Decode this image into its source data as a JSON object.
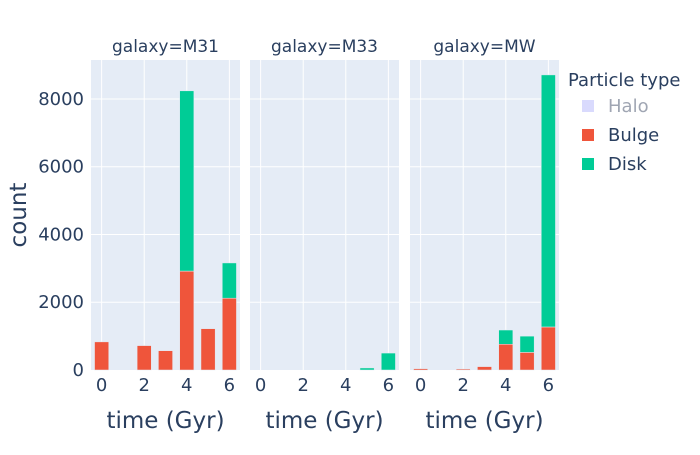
{
  "chart_data": {
    "type": "bar",
    "barmode": "stack",
    "x_label": "time (Gyr)",
    "y_label": "count",
    "x_ticks": [
      0,
      2,
      4,
      6
    ],
    "y_ticks": [
      0,
      2000,
      4000,
      6000,
      8000
    ],
    "y_range": [
      0,
      9150
    ],
    "x_range": [
      -0.5,
      6.5
    ],
    "grid": true,
    "legend": {
      "title": "Particle type",
      "position": "right",
      "entries": [
        {
          "name": "Halo",
          "color": "#b3b5fc",
          "hidden": true
        },
        {
          "name": "Bulge",
          "color": "#ef553b",
          "hidden": false
        },
        {
          "name": "Disk",
          "color": "#00cc96",
          "hidden": false
        }
      ]
    },
    "panels": [
      {
        "title": "galaxy=M31",
        "x": [
          0,
          1,
          2,
          3,
          4,
          5,
          6
        ],
        "series": [
          {
            "name": "Bulge",
            "values": [
              830,
              0,
              720,
              570,
              2920,
              1220,
              2120
            ]
          },
          {
            "name": "Disk",
            "values": [
              0,
              0,
              0,
              0,
              5320,
              0,
              1040
            ]
          }
        ]
      },
      {
        "title": "galaxy=M33",
        "x": [
          0,
          1,
          2,
          3,
          4,
          5,
          6
        ],
        "series": [
          {
            "name": "Bulge",
            "values": [
              0,
              0,
              0,
              0,
              0,
              0,
              0
            ]
          },
          {
            "name": "Disk",
            "values": [
              0,
              0,
              0,
              0,
              0,
              60,
              500
            ]
          }
        ]
      },
      {
        "title": "galaxy=MW",
        "x": [
          0,
          1,
          2,
          3,
          4,
          5,
          6
        ],
        "series": [
          {
            "name": "Bulge",
            "values": [
              40,
              0,
              30,
              100,
              760,
              520,
              1270
            ]
          },
          {
            "name": "Disk",
            "values": [
              0,
              0,
              0,
              0,
              420,
              480,
              7440
            ]
          }
        ]
      }
    ]
  }
}
